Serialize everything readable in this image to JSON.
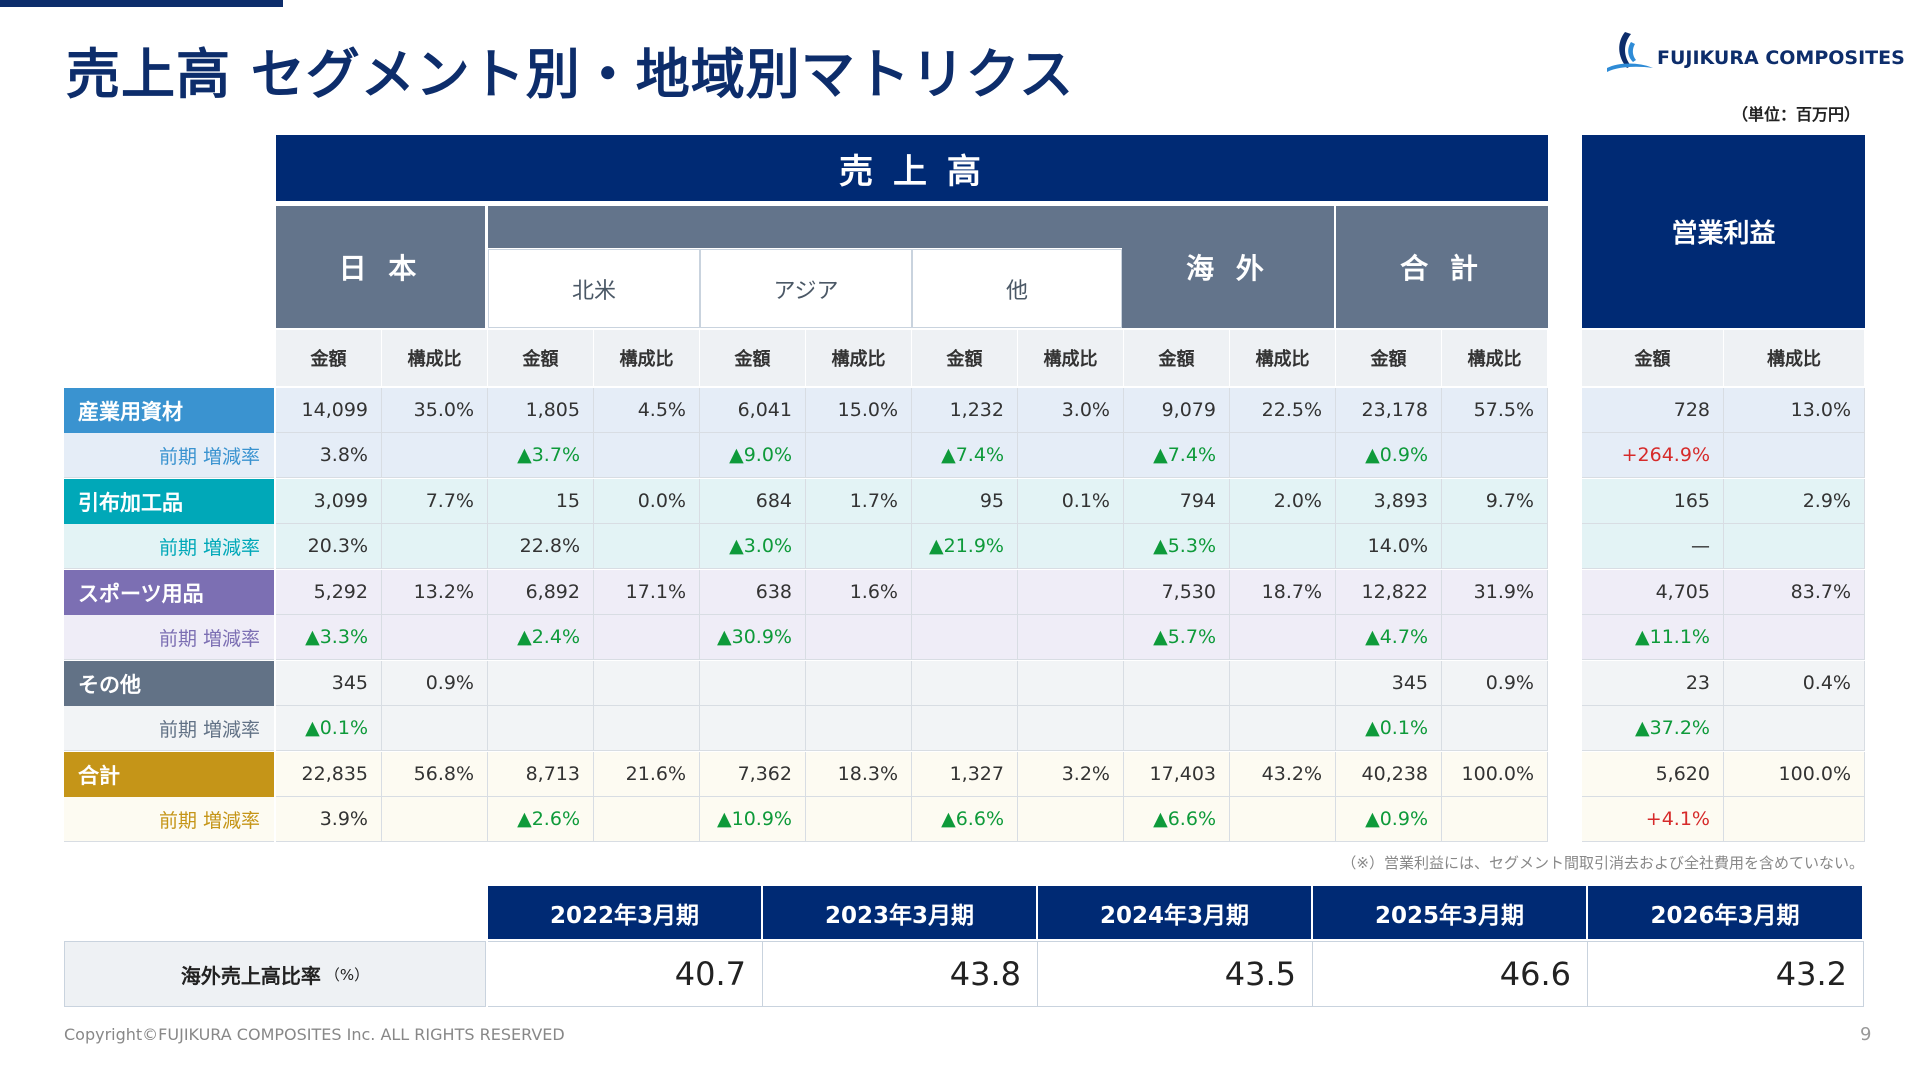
{
  "title": "売上高 セグメント別・地域別マトリクス",
  "logo_text": "FUJIKURA COMPOSITES",
  "unit": "（単位：百万円）",
  "headers": {
    "sales": "売 上 高",
    "japan": "日 本",
    "overseas": "海 外",
    "total": "合 計",
    "north_america": "北米",
    "asia": "アジア",
    "other": "他",
    "op_profit": "営業利益",
    "amount": "金額",
    "ratio": "構成比"
  },
  "rows": [
    {
      "label": "産業用資材",
      "rate_label": "前期 増減率",
      "values": [
        "14,099",
        "35.0%",
        "1,805",
        "4.5%",
        "6,041",
        "15.0%",
        "1,232",
        "3.0%",
        "9,079",
        "22.5%",
        "23,178",
        "57.5%"
      ],
      "rates": [
        "3.8%",
        "",
        "▲3.7%",
        "",
        "▲9.0%",
        "",
        "▲7.4%",
        "",
        "▲7.4%",
        "",
        "▲0.9%",
        ""
      ],
      "op": [
        "728",
        "13.0%"
      ],
      "op_rate": "+264.9%"
    },
    {
      "label": "引布加工品",
      "rate_label": "前期 増減率",
      "values": [
        "3,099",
        "7.7%",
        "15",
        "0.0%",
        "684",
        "1.7%",
        "95",
        "0.1%",
        "794",
        "2.0%",
        "3,893",
        "9.7%"
      ],
      "rates": [
        "20.3%",
        "",
        "22.8%",
        "",
        "▲3.0%",
        "",
        "▲21.9%",
        "",
        "▲5.3%",
        "",
        "14.0%",
        ""
      ],
      "op": [
        "165",
        "2.9%"
      ],
      "op_rate": "—"
    },
    {
      "label": "スポーツ用品",
      "rate_label": "前期 増減率",
      "values": [
        "5,292",
        "13.2%",
        "6,892",
        "17.1%",
        "638",
        "1.6%",
        "",
        "",
        "7,530",
        "18.7%",
        "12,822",
        "31.9%"
      ],
      "rates": [
        "▲3.3%",
        "",
        "▲2.4%",
        "",
        "▲30.9%",
        "",
        "",
        "",
        "▲5.7%",
        "",
        "▲4.7%",
        ""
      ],
      "op": [
        "4,705",
        "83.7%"
      ],
      "op_rate": "▲11.1%"
    },
    {
      "label": "その他",
      "rate_label": "前期 増減率",
      "values": [
        "345",
        "0.9%",
        "",
        "",
        "",
        "",
        "",
        "",
        "",
        "",
        "345",
        "0.9%"
      ],
      "rates": [
        "▲0.1%",
        "",
        "",
        "",
        "",
        "",
        "",
        "",
        "",
        "",
        "▲0.1%",
        ""
      ],
      "op": [
        "23",
        "0.4%"
      ],
      "op_rate": "▲37.2%"
    },
    {
      "label": "合計",
      "rate_label": "前期 増減率",
      "values": [
        "22,835",
        "56.8%",
        "8,713",
        "21.6%",
        "7,362",
        "18.3%",
        "1,327",
        "3.2%",
        "17,403",
        "43.2%",
        "40,238",
        "100.0%"
      ],
      "rates": [
        "3.9%",
        "",
        "▲2.6%",
        "",
        "▲10.9%",
        "",
        "▲6.6%",
        "",
        "▲6.6%",
        "",
        "▲0.9%",
        ""
      ],
      "op": [
        "5,620",
        "100.0%"
      ],
      "op_rate": "+4.1%"
    }
  ],
  "colors": {
    "navy": "#002a74",
    "slate": "#63748b",
    "segments": [
      "#3a93d0",
      "#00a8b8",
      "#7c6fb3",
      "#627286",
      "#c59518"
    ],
    "rate_text": [
      "#3a93d0",
      "#00a8b8",
      "#7c6fb3",
      "#627286",
      "#c59518"
    ],
    "row_bg": [
      "#e5edf7",
      "#e3f3f5",
      "#efedf7",
      "#f2f4f6",
      "#fdfbf2"
    ],
    "positive": "#0e9a3a",
    "negative": "#d62a2a"
  },
  "note": "（※）営業利益には、セグメント間取引消去および全社費用を含めていない。",
  "overseas_ratio": {
    "label": "海外売上高比率",
    "unit": "（%）",
    "years": [
      "2022年3月期",
      "2023年3月期",
      "2024年3月期",
      "2025年3月期",
      "2026年3月期"
    ],
    "values": [
      "40.7",
      "43.8",
      "43.5",
      "46.6",
      "43.2"
    ]
  },
  "copyright": "Copyright©FUJIKURA COMPOSITES Inc. ALL RIGHTS RESERVED",
  "page_number": "9"
}
